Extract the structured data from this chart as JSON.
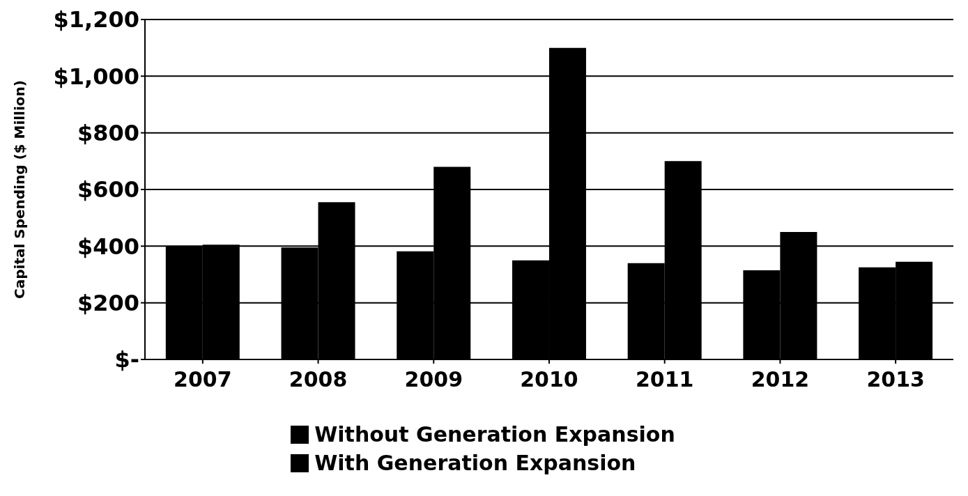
{
  "chart_data": {
    "type": "bar",
    "ylabel": "Capital Spending ($ Million)",
    "categories": [
      "2007",
      "2008",
      "2009",
      "2010",
      "2011",
      "2012",
      "2013"
    ],
    "series": [
      {
        "name": "Without Generation Expansion",
        "color": "#000000",
        "values": [
          400,
          395,
          382,
          350,
          340,
          315,
          325
        ]
      },
      {
        "name": "With Generation Expansion",
        "color": "#000000",
        "values": [
          405,
          555,
          680,
          1100,
          700,
          450,
          345
        ]
      }
    ],
    "ylim": [
      0,
      1200
    ],
    "yticks": [
      {
        "value": 0,
        "label": "$-"
      },
      {
        "value": 200,
        "label": "$200"
      },
      {
        "value": 400,
        "label": "$400"
      },
      {
        "value": 600,
        "label": "$600"
      },
      {
        "value": 800,
        "label": "$800"
      },
      {
        "value": 1000,
        "label": "$1,000"
      },
      {
        "value": 1200,
        "label": "$1,200"
      }
    ],
    "grid": "y",
    "legend": "bottom"
  }
}
